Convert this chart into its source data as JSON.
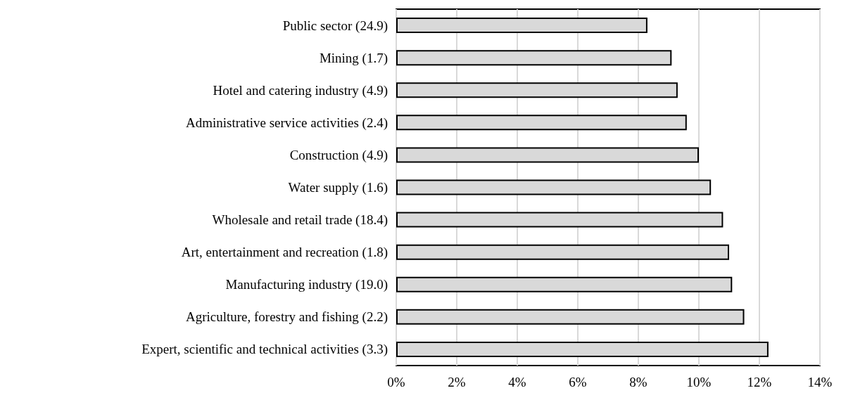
{
  "chart_data": {
    "type": "bar",
    "orientation": "horizontal",
    "categories": [
      "Public sector (24.9)",
      "Mining (1.7)",
      "Hotel and catering industry (4.9)",
      "Administrative service activities (2.4)",
      "Construction (4.9)",
      "Water supply (1.6)",
      "Wholesale and retail trade (18.4)",
      "Art, entertainment and recreation (1.8)",
      "Manufacturing industry (19.0)",
      "Agriculture, forestry and fishing (2.2)",
      "Expert, scientific and technical activities (3.3)"
    ],
    "values": [
      8.3,
      9.1,
      9.3,
      9.6,
      10.0,
      10.4,
      10.8,
      11.0,
      11.1,
      11.5,
      12.3
    ],
    "color": "#d9d9d9",
    "xlim": [
      0,
      14
    ],
    "xticks": [
      {
        "value": 0,
        "label": "0%"
      },
      {
        "value": 2,
        "label": "2%"
      },
      {
        "value": 4,
        "label": "4%"
      },
      {
        "value": 6,
        "label": "6%"
      },
      {
        "value": 8,
        "label": "8%"
      },
      {
        "value": 10,
        "label": "10%"
      },
      {
        "value": 12,
        "label": "12%"
      },
      {
        "value": 14,
        "label": "14%"
      }
    ],
    "grid": "x"
  }
}
